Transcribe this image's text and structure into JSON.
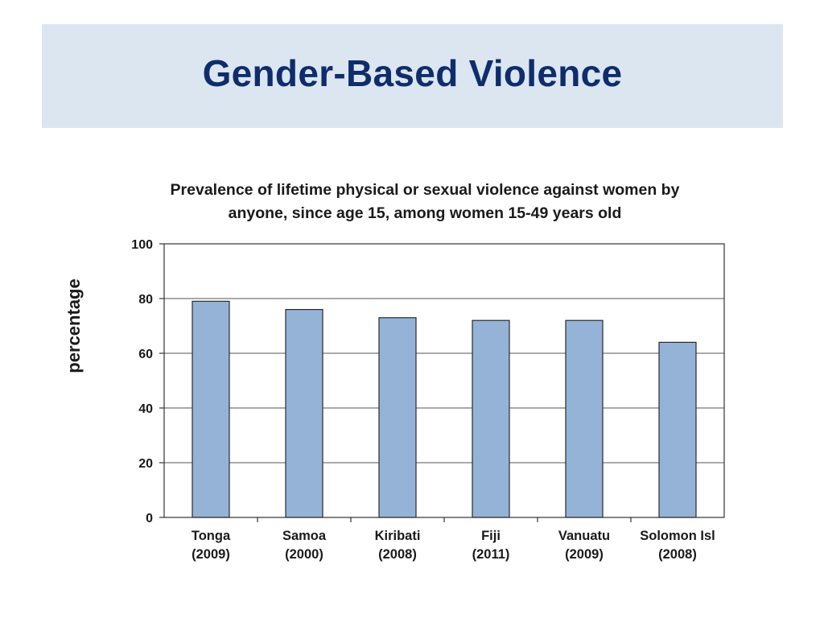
{
  "slide": {
    "title": "Gender-Based Violence",
    "band_color": "#dce6f1",
    "title_color": "#0f2d6b"
  },
  "chart_data": {
    "type": "bar",
    "title_lines": [
      "Prevalence of lifetime physical or sexual violence against women by",
      "anyone, since age 15, among women 15-49 years old"
    ],
    "xlabel": "",
    "ylabel": "percentage",
    "ylim": [
      0,
      100
    ],
    "yticks": [
      0,
      20,
      40,
      60,
      80,
      100
    ],
    "grid": true,
    "legend": "none",
    "bar_color": "#95b3d7",
    "categories": [
      {
        "name": "Tonga",
        "year": "(2009)"
      },
      {
        "name": "Samoa",
        "year": "(2000)"
      },
      {
        "name": "Kiribati",
        "year": "(2008)"
      },
      {
        "name": "Fiji",
        "year": "(2011)"
      },
      {
        "name": "Vanuatu",
        "year": "(2009)"
      },
      {
        "name": "Solomon Isl",
        "year": "(2008)"
      }
    ],
    "values": [
      79,
      76,
      73,
      72,
      72,
      64
    ]
  }
}
